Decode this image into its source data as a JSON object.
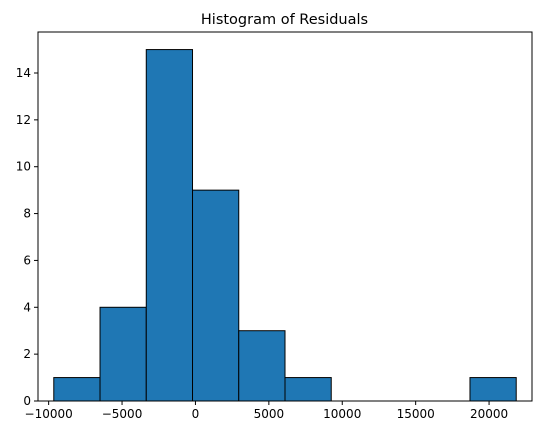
{
  "chart_data": {
    "type": "bar",
    "title": "Histogram of Residuals",
    "xlabel": "",
    "ylabel": "",
    "bin_edges": [
      -9650,
      -6500,
      -3350,
      -200,
      2950,
      6100,
      9250,
      12400,
      15550,
      18700,
      21850
    ],
    "counts": [
      1,
      4,
      15,
      9,
      3,
      1,
      0,
      0,
      0,
      1
    ],
    "xlim": [
      -10725,
      22925
    ],
    "ylim": [
      0,
      15.75
    ],
    "x_ticks": [
      -10000,
      -5000,
      0,
      5000,
      10000,
      15000,
      20000
    ],
    "x_tick_labels": [
      "−10000",
      "−5000",
      "0",
      "5000",
      "10000",
      "15000",
      "20000"
    ],
    "y_ticks": [
      0,
      2,
      4,
      6,
      8,
      10,
      12,
      14
    ],
    "y_tick_labels": [
      "0",
      "2",
      "4",
      "6",
      "8",
      "10",
      "12",
      "14"
    ],
    "bar_color": "#1f77b4",
    "edge_color": "#000000",
    "grid": false
  }
}
